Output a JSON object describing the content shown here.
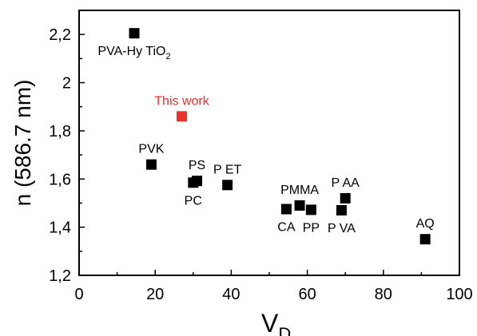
{
  "chart_data": {
    "type": "scatter",
    "title": "",
    "xlabel": "V",
    "xlabel_sub": "D",
    "ylabel": "n (586.7 nm)",
    "xlim": [
      0,
      100
    ],
    "ylim": [
      1.2,
      2.3
    ],
    "x_ticks": [
      0,
      20,
      40,
      60,
      80,
      100
    ],
    "x_tick_labels": [
      "0",
      "20",
      "40",
      "60",
      "80",
      "100"
    ],
    "y_ticks": [
      1.2,
      1.4,
      1.6,
      1.8,
      2.0,
      2.2
    ],
    "y_tick_labels": [
      "1,2",
      "1,4",
      "1,6",
      "1,8",
      "2",
      "2,2"
    ],
    "grid": false,
    "legend": "none",
    "colors": {
      "default": "#000000",
      "highlight": "#e8302c"
    },
    "points": [
      {
        "x": 14.5,
        "y": 2.205,
        "label": "PVA-Hy TiO",
        "label_sub": "2",
        "label_pos": "below",
        "color": "#000000"
      },
      {
        "x": 27.0,
        "y": 1.86,
        "label": "This work",
        "label_pos": "above",
        "color": "#e8302c"
      },
      {
        "x": 19.0,
        "y": 1.66,
        "label": "PVK",
        "label_pos": "above",
        "color": "#000000"
      },
      {
        "x": 31.0,
        "y": 1.592,
        "label": "PS",
        "label_pos": "above",
        "color": "#000000"
      },
      {
        "x": 30.0,
        "y": 1.585,
        "label": "PC",
        "label_pos": "below",
        "color": "#000000"
      },
      {
        "x": 39.0,
        "y": 1.575,
        "label": "P ET",
        "label_pos": "above",
        "color": "#000000"
      },
      {
        "x": 54.5,
        "y": 1.475,
        "label": "CA",
        "label_pos": "below",
        "color": "#000000"
      },
      {
        "x": 58.0,
        "y": 1.49,
        "label": "PMMA",
        "label_pos": "above",
        "color": "#000000"
      },
      {
        "x": 61.0,
        "y": 1.472,
        "label": "PP",
        "label_pos": "below",
        "color": "#000000"
      },
      {
        "x": 69.0,
        "y": 1.47,
        "label": "P VA",
        "label_pos": "below",
        "color": "#000000"
      },
      {
        "x": 70.0,
        "y": 1.52,
        "label": "P AA",
        "label_pos": "above",
        "color": "#000000"
      },
      {
        "x": 91.0,
        "y": 1.35,
        "label": "AQ",
        "label_pos": "above",
        "color": "#000000"
      }
    ]
  }
}
